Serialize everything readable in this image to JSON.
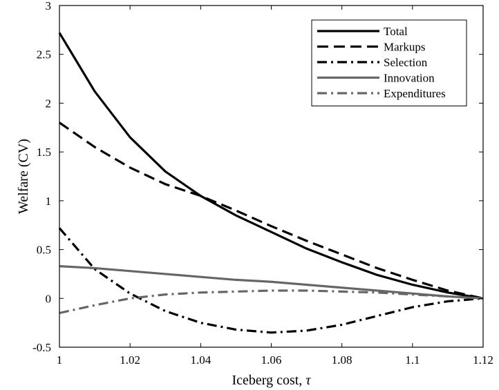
{
  "chart_data": {
    "type": "line",
    "xlabel": "Iceberg cost,",
    "xlabel_symbol": "τ",
    "ylabel": "Welfare (CV)",
    "xlim": [
      1.0,
      1.12
    ],
    "ylim": [
      -0.5,
      3.0
    ],
    "x_ticks": [
      1.0,
      1.02,
      1.04,
      1.06,
      1.08,
      1.1,
      1.12
    ],
    "x_tick_labels": [
      "1",
      "1.02",
      "1.04",
      "1.06",
      "1.08",
      "1.1",
      "1.12"
    ],
    "y_ticks": [
      -0.5,
      0,
      0.5,
      1,
      1.5,
      2,
      2.5,
      3
    ],
    "y_tick_labels": [
      "-0.5",
      "0",
      "0.5",
      "1",
      "1.5",
      "2",
      "2.5",
      "3"
    ],
    "grid": false,
    "legend_position": "top-right",
    "x": [
      1.0,
      1.01,
      1.02,
      1.03,
      1.04,
      1.05,
      1.06,
      1.07,
      1.08,
      1.09,
      1.1,
      1.11,
      1.12
    ],
    "series": [
      {
        "name": "Total",
        "color": "#000000",
        "dash": "solid",
        "values": [
          2.72,
          2.12,
          1.65,
          1.3,
          1.05,
          0.85,
          0.68,
          0.51,
          0.37,
          0.24,
          0.14,
          0.06,
          0.0
        ]
      },
      {
        "name": "Markups",
        "color": "#000000",
        "dash": "dashed",
        "values": [
          1.8,
          1.55,
          1.34,
          1.17,
          1.05,
          0.9,
          0.74,
          0.59,
          0.45,
          0.31,
          0.19,
          0.08,
          0.0
        ]
      },
      {
        "name": "Selection",
        "color": "#000000",
        "dash": "dashdot",
        "values": [
          0.72,
          0.3,
          0.05,
          -0.13,
          -0.25,
          -0.32,
          -0.35,
          -0.33,
          -0.27,
          -0.18,
          -0.09,
          -0.03,
          0.0
        ]
      },
      {
        "name": "Innovation",
        "color": "#666666",
        "dash": "solid",
        "values": [
          0.33,
          0.31,
          0.28,
          0.25,
          0.22,
          0.19,
          0.17,
          0.14,
          0.11,
          0.08,
          0.05,
          0.02,
          0.0
        ]
      },
      {
        "name": "Expenditures",
        "color": "#666666",
        "dash": "dashdot",
        "values": [
          -0.15,
          -0.07,
          0.0,
          0.04,
          0.06,
          0.07,
          0.08,
          0.08,
          0.07,
          0.06,
          0.04,
          0.02,
          0.0
        ]
      }
    ]
  }
}
